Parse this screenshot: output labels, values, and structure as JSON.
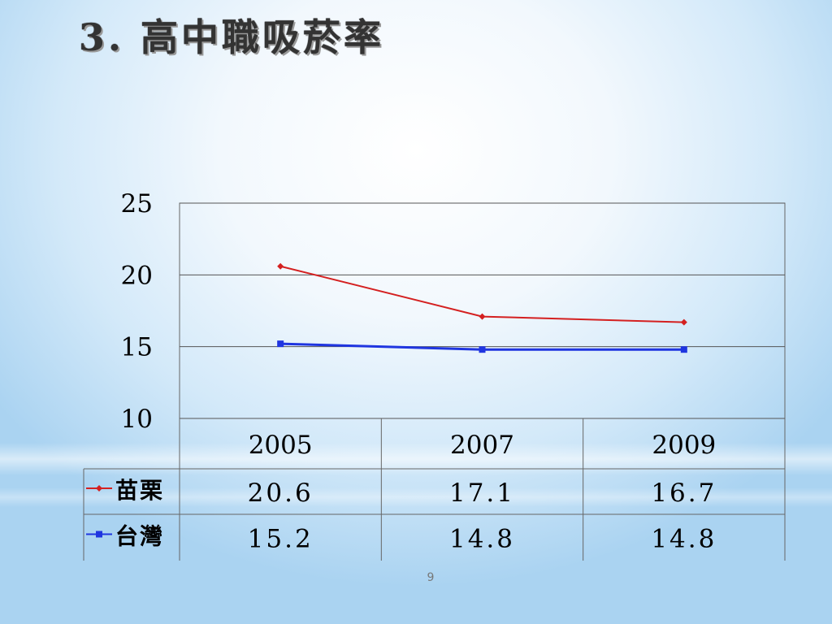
{
  "title": "3. 高中職吸菸率",
  "page_number": "9",
  "colors": {
    "series_1": "#d42020",
    "series_2": "#1f35e0",
    "grid": "#555555"
  },
  "chart_data": {
    "type": "line",
    "categories": [
      "2005",
      "2007",
      "2009"
    ],
    "series": [
      {
        "name": "苗栗",
        "values": [
          20.6,
          17.1,
          16.7
        ],
        "value_labels": [
          "20.6",
          "17.1",
          "16.7"
        ],
        "marker": "diamond"
      },
      {
        "name": "台灣",
        "values": [
          15.2,
          14.8,
          14.8
        ],
        "value_labels": [
          "15.2",
          "14.8",
          "14.8"
        ],
        "marker": "square"
      }
    ],
    "y_ticks": [
      "10",
      "15",
      "20",
      "25"
    ],
    "ylim": [
      10,
      25
    ],
    "grid": true,
    "legend": "data-table",
    "title": "",
    "xlabel": "",
    "ylabel": ""
  }
}
